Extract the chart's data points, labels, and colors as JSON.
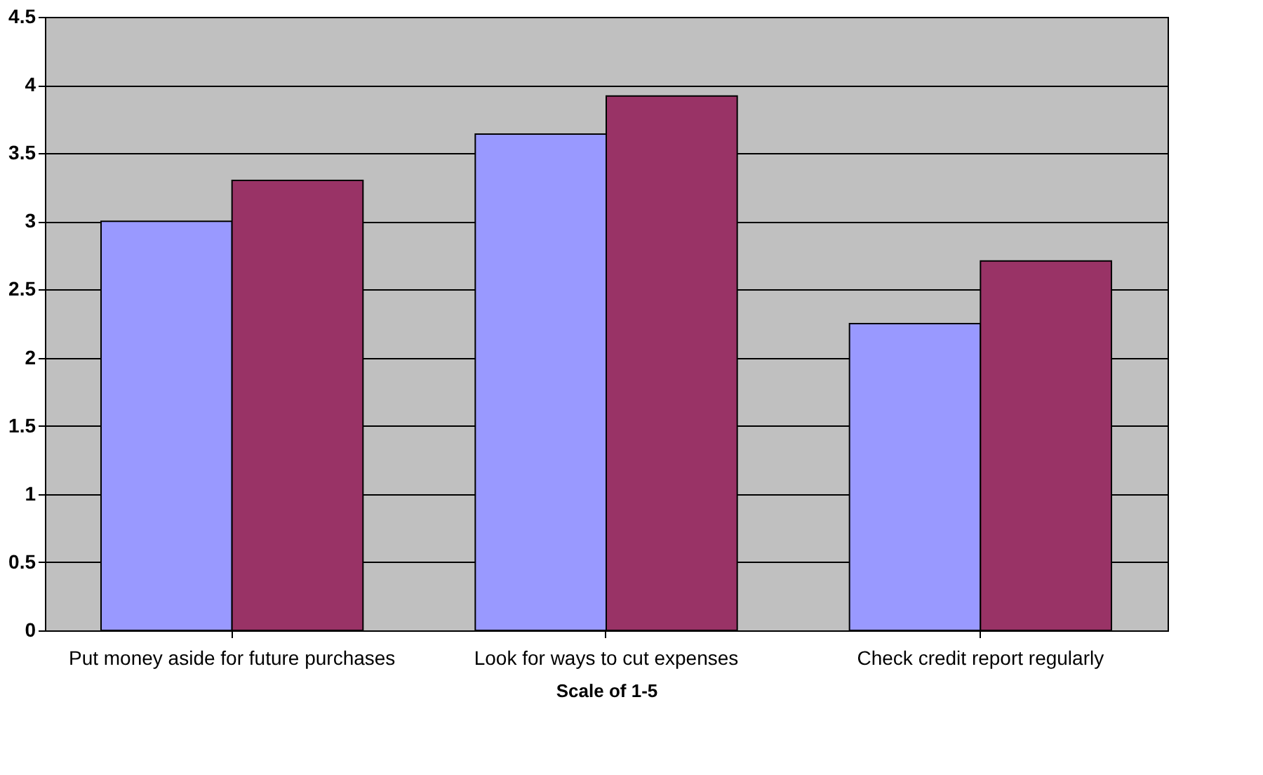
{
  "chart_data": {
    "type": "bar",
    "xlabel": "Scale of 1-5",
    "categories": [
      "Put money aside for future purchases",
      "Look for ways to cut expenses",
      "Check credit report regularly"
    ],
    "series": [
      {
        "color": "#9999ff",
        "values": [
          3.0,
          3.64,
          2.25
        ]
      },
      {
        "color": "#993366",
        "values": [
          3.3,
          3.92,
          2.71
        ]
      }
    ],
    "ylim": [
      0,
      4.5
    ],
    "yticks": [
      0,
      0.5,
      1,
      1.5,
      2,
      2.5,
      3,
      3.5,
      4,
      4.5
    ],
    "grid": "y",
    "legend": false
  }
}
